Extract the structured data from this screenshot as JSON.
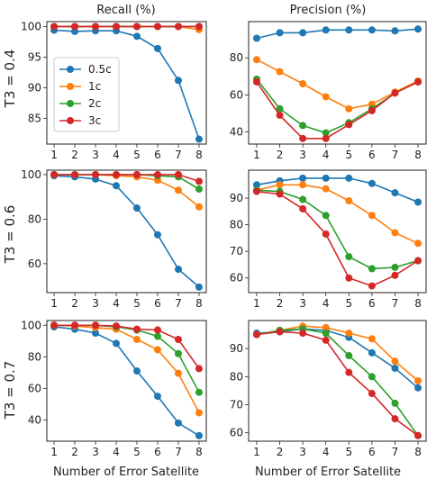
{
  "chart_data": {
    "type": "line",
    "column_titles": [
      "Recall (%)",
      "Precision (%)"
    ],
    "row_titles": [
      "T3 = 0.4",
      "T3 = 0.6",
      "T3 = 0.7"
    ],
    "xlabel": "Number of Error Satellite",
    "x": [
      1,
      2,
      3,
      4,
      5,
      6,
      7,
      8
    ],
    "series_names": [
      "0.5c",
      "1c",
      "2c",
      "3c"
    ],
    "colors": [
      "#1f77b4",
      "#ff7f0e",
      "#2ca02c",
      "#d62728"
    ],
    "legend_location": "center-left of top-left panel",
    "panels": [
      {
        "row": 0,
        "col": 0,
        "ylim": [
          80.8,
          100.8
        ],
        "yticks": [
          85,
          90,
          95,
          100
        ],
        "series": [
          {
            "name": "0.5c",
            "values": [
              99.4,
              99.2,
              99.3,
              99.3,
              98.4,
              96.4,
              91.2,
              81.6
            ]
          },
          {
            "name": "1c",
            "values": [
              100.0,
              100.0,
              100.0,
              100.0,
              100.0,
              100.0,
              100.0,
              99.5
            ]
          },
          {
            "name": "2c",
            "values": [
              100.0,
              100.0,
              100.0,
              100.0,
              100.0,
              100.0,
              100.0,
              100.0
            ]
          },
          {
            "name": "3c",
            "values": [
              100.0,
              100.0,
              100.0,
              100.0,
              100.0,
              100.0,
              100.0,
              100.0
            ]
          }
        ]
      },
      {
        "row": 0,
        "col": 1,
        "ylim": [
          33.5,
          99.5
        ],
        "yticks": [
          40,
          60,
          80
        ],
        "series": [
          {
            "name": "0.5c",
            "values": [
              90.5,
              93.5,
              93.5,
              95.0,
              95.0,
              95.0,
              94.5,
              95.5
            ]
          },
          {
            "name": "1c",
            "values": [
              79.0,
              72.5,
              66.0,
              59.0,
              52.5,
              55.0,
              61.5,
              67.5
            ]
          },
          {
            "name": "2c",
            "values": [
              68.5,
              52.5,
              43.5,
              39.5,
              45.0,
              52.5,
              61.0,
              67.0
            ]
          },
          {
            "name": "3c",
            "values": [
              67.0,
              49.0,
              36.5,
              36.5,
              44.0,
              51.5,
              61.0,
              67.0
            ]
          }
        ]
      },
      {
        "row": 1,
        "col": 0,
        "ylim": [
          47.0,
          102.0
        ],
        "yticks": [
          60,
          80,
          100
        ],
        "series": [
          {
            "name": "0.5c",
            "values": [
              99.5,
              99.0,
              98.0,
              95.0,
              85.0,
              73.0,
              57.5,
              49.5
            ]
          },
          {
            "name": "1c",
            "values": [
              100.0,
              100.0,
              100.0,
              99.5,
              99.0,
              97.5,
              93.0,
              85.5
            ]
          },
          {
            "name": "2c",
            "values": [
              100.0,
              100.0,
              100.0,
              100.0,
              100.0,
              99.5,
              99.0,
              93.5
            ]
          },
          {
            "name": "3c",
            "values": [
              100.0,
              100.0,
              100.0,
              100.0,
              100.0,
              100.0,
              100.0,
              97.0
            ]
          }
        ]
      },
      {
        "row": 1,
        "col": 1,
        "ylim": [
          54.5,
          100.5
        ],
        "yticks": [
          60,
          70,
          80,
          90
        ],
        "series": [
          {
            "name": "0.5c",
            "values": [
              95.0,
              96.5,
              97.5,
              97.5,
              97.5,
              95.5,
              92.0,
              88.5
            ]
          },
          {
            "name": "1c",
            "values": [
              93.0,
              95.0,
              95.0,
              93.5,
              89.0,
              83.5,
              77.0,
              73.0
            ]
          },
          {
            "name": "2c",
            "values": [
              93.0,
              92.5,
              89.5,
              83.5,
              68.0,
              63.5,
              64.0,
              66.5
            ]
          },
          {
            "name": "3c",
            "values": [
              92.5,
              91.5,
              86.0,
              76.5,
              60.0,
              57.0,
              61.0,
              66.5
            ]
          }
        ]
      },
      {
        "row": 2,
        "col": 0,
        "ylim": [
          26.5,
          103.0
        ],
        "yticks": [
          40,
          60,
          80,
          100
        ],
        "series": [
          {
            "name": "0.5c",
            "values": [
              99.0,
              97.5,
              95.0,
              88.5,
              71.0,
              55.0,
              38.0,
              30.0
            ]
          },
          {
            "name": "1c",
            "values": [
              100.0,
              99.5,
              98.5,
              97.5,
              91.0,
              84.5,
              69.5,
              44.5
            ]
          },
          {
            "name": "2c",
            "values": [
              100.0,
              100.0,
              100.0,
              99.0,
              97.0,
              93.0,
              82.0,
              57.5
            ]
          },
          {
            "name": "3c",
            "values": [
              100.0,
              100.0,
              100.0,
              99.5,
              97.5,
              97.0,
              91.0,
              72.5
            ]
          }
        ]
      },
      {
        "row": 2,
        "col": 1,
        "ylim": [
          57.0,
          100.0
        ],
        "yticks": [
          60,
          70,
          80,
          90
        ],
        "series": [
          {
            "name": "0.5c",
            "values": [
              95.5,
              96.0,
              97.0,
              96.5,
              94.0,
              88.5,
              83.0,
              76.0
            ]
          },
          {
            "name": "1c",
            "values": [
              95.0,
              96.5,
              98.0,
              97.5,
              95.5,
              93.5,
              85.5,
              78.5
            ]
          },
          {
            "name": "2c",
            "values": [
              95.0,
              96.5,
              97.0,
              95.5,
              87.5,
              80.0,
              70.5,
              59.0
            ]
          },
          {
            "name": "3c",
            "values": [
              95.0,
              96.0,
              95.5,
              93.0,
              81.5,
              74.0,
              65.0,
              59.0
            ]
          }
        ]
      }
    ]
  }
}
